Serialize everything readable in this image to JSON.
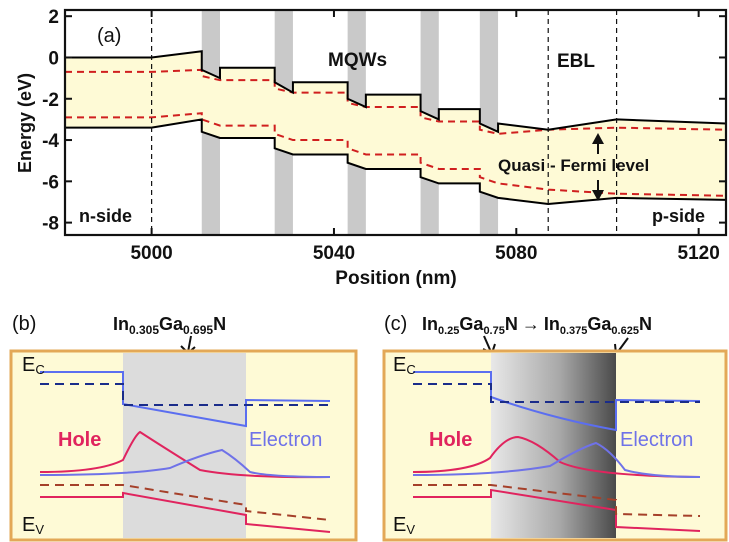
{
  "panel_a": {
    "label": "(a)",
    "mqw_label": "MQWs",
    "ebl_label": "EBL",
    "quasi_fermi_label": "Quasi - Fermi level",
    "n_side_label": "n-side",
    "p_side_label": "p-side",
    "xlabel": "Position (nm)",
    "ylabel": "Energy (eV)"
  },
  "panel_b": {
    "label": "(b)",
    "composition_In": "In",
    "composition_In_sub": "0.305",
    "composition_Ga": "Ga",
    "composition_Ga_sub": "0.695",
    "composition_N": "N",
    "ec_main": "E",
    "ec_sub": "C",
    "ev_main": "E",
    "ev_sub": "V",
    "hole_label": "Hole",
    "electron_label": "Electron"
  },
  "panel_c": {
    "label": "(c)",
    "comp1_In": "In",
    "comp1_In_sub": "0.25",
    "comp1_Ga": "Ga",
    "comp1_Ga_sub": "0.75",
    "comp1_N": "N",
    "arrow": "→",
    "comp2_In": "In",
    "comp2_In_sub": "0.375",
    "comp2_Ga": "Ga",
    "comp2_Ga_sub": "0.625",
    "comp2_N": "N",
    "ec_main": "E",
    "ec_sub": "C",
    "ev_main": "E",
    "ev_sub": "V",
    "hole_label": "Hole",
    "electron_label": "Electron"
  },
  "colors": {
    "band_fill": "#fefad6",
    "band_line": "#000000",
    "fermi": "#d01f1f",
    "qw_gray": "#c9c9c9",
    "frame_orange": "#e3a857",
    "hole": "#e0245e",
    "electron": "#6f72e8",
    "ec_line": "#5b6ef0",
    "ec_dash": "#1a2c8a",
    "ev_line": "#e0245e",
    "ev_dash": "#a5402a"
  },
  "chart_data": {
    "type": "line",
    "x_ticks": [
      "5000",
      "5040",
      "5080",
      "5120"
    ],
    "x_tick_values": [
      5000,
      5040,
      5080,
      5120
    ],
    "y_ticks": [
      "2",
      "0",
      "-2",
      "-4",
      "-6",
      "-8"
    ],
    "y_tick_values": [
      2,
      0,
      -2,
      -4,
      -6,
      -8
    ],
    "xlim": [
      4981,
      5126
    ],
    "ylim": [
      -8.6,
      2.3
    ],
    "vertical_dashed_lines": [
      5000,
      5087,
      5102
    ],
    "qw_regions": [
      [
        5011,
        5015
      ],
      [
        5027,
        5031
      ],
      [
        5043,
        5047
      ],
      [
        5059,
        5063
      ],
      [
        5072,
        5076
      ]
    ],
    "series": [
      {
        "points": [
          [
            4981,
            0
          ],
          [
            5000,
            0
          ],
          [
            5011,
            0.3
          ],
          [
            5011,
            -0.6
          ],
          [
            5015,
            -1.0
          ],
          [
            5015,
            -0.5
          ],
          [
            5027,
            -0.5
          ],
          [
            5027,
            -1.2
          ],
          [
            5031,
            -1.7
          ],
          [
            5031,
            -1.2
          ],
          [
            5043,
            -1.2
          ],
          [
            5043,
            -2.0
          ],
          [
            5047,
            -2.4
          ],
          [
            5047,
            -1.8
          ],
          [
            5059,
            -1.8
          ],
          [
            5059,
            -2.6
          ],
          [
            5063,
            -3.0
          ],
          [
            5063,
            -2.5
          ],
          [
            5072,
            -2.5
          ],
          [
            5072,
            -3.2
          ],
          [
            5076,
            -3.6
          ],
          [
            5076,
            -3.2
          ],
          [
            5087,
            -3.5
          ],
          [
            5102,
            -3.0
          ],
          [
            5126,
            -3.2
          ]
        ]
      },
      {
        "points": [
          [
            4981,
            -2.9
          ],
          [
            5000,
            -2.9
          ],
          [
            5011,
            -2.7
          ],
          [
            5011,
            -3.0
          ],
          [
            5015,
            -3.3
          ],
          [
            5027,
            -3.3
          ],
          [
            5027,
            -3.7
          ],
          [
            5031,
            -4.0
          ],
          [
            5043,
            -4.0
          ],
          [
            5043,
            -4.4
          ],
          [
            5047,
            -4.7
          ],
          [
            5059,
            -4.7
          ],
          [
            5059,
            -5.1
          ],
          [
            5063,
            -5.4
          ],
          [
            5072,
            -5.4
          ],
          [
            5072,
            -5.8
          ],
          [
            5076,
            -6.1
          ],
          [
            5087,
            -6.4
          ],
          [
            5102,
            -6.6
          ],
          [
            5126,
            -6.7
          ]
        ]
      },
      {
        "points": [
          [
            4981,
            -0.7
          ],
          [
            5000,
            -0.7
          ],
          [
            5011,
            -0.6
          ],
          [
            5011,
            -0.9
          ],
          [
            5015,
            -1.1
          ],
          [
            5027,
            -1.1
          ],
          [
            5027,
            -1.5
          ],
          [
            5031,
            -1.7
          ],
          [
            5043,
            -1.7
          ],
          [
            5043,
            -2.2
          ],
          [
            5047,
            -2.4
          ],
          [
            5059,
            -2.4
          ],
          [
            5059,
            -2.9
          ],
          [
            5063,
            -3.1
          ],
          [
            5072,
            -3.1
          ],
          [
            5072,
            -3.5
          ],
          [
            5076,
            -3.7
          ],
          [
            5087,
            -3.5
          ],
          [
            5102,
            -3.4
          ],
          [
            5126,
            -3.5
          ]
        ]
      },
      {
        "points": [
          [
            4981,
            -3.4
          ],
          [
            5000,
            -3.4
          ],
          [
            5011,
            -3.0
          ],
          [
            5011,
            -3.6
          ],
          [
            5015,
            -3.9
          ],
          [
            5027,
            -3.9
          ],
          [
            5027,
            -4.4
          ],
          [
            5031,
            -4.7
          ],
          [
            5043,
            -4.7
          ],
          [
            5043,
            -5.1
          ],
          [
            5047,
            -5.4
          ],
          [
            5059,
            -5.4
          ],
          [
            5059,
            -5.8
          ],
          [
            5063,
            -6.1
          ],
          [
            5072,
            -6.1
          ],
          [
            5072,
            -6.5
          ],
          [
            5076,
            -6.8
          ],
          [
            5087,
            -7.1
          ],
          [
            5102,
            -6.8
          ],
          [
            5126,
            -6.9
          ]
        ]
      }
    ]
  }
}
